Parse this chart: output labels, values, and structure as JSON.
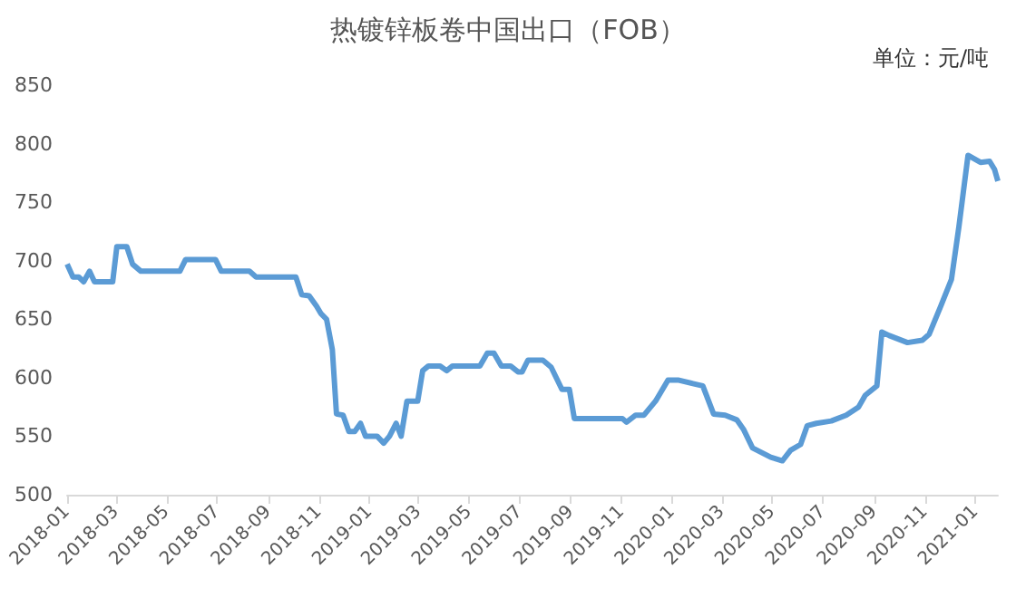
{
  "chart_data": {
    "type": "line",
    "title": "热镀锌板卷中国出口（FOB）",
    "annotations": [
      "单位：元/吨"
    ],
    "x": [
      "2018-01-01",
      "2018-01-08",
      "2018-01-15",
      "2018-01-21",
      "2018-01-28",
      "2018-02-03",
      "2018-02-25",
      "2018-03-02",
      "2018-03-14",
      "2018-03-21",
      "2018-03-31",
      "2018-05-17",
      "2018-05-24",
      "2018-06-29",
      "2018-07-06",
      "2018-08-09",
      "2018-08-17",
      "2018-10-04",
      "2018-10-11",
      "2018-10-20",
      "2018-10-29",
      "2018-11-03",
      "2018-11-10",
      "2018-11-17",
      "2018-11-22",
      "2018-11-30",
      "2018-12-07",
      "2018-12-14",
      "2018-12-21",
      "2018-12-27",
      "2019-01-10",
      "2019-01-18",
      "2019-01-25",
      "2019-02-02",
      "2019-02-08",
      "2019-02-15",
      "2019-02-28",
      "2019-03-06",
      "2019-03-13",
      "2019-03-27",
      "2019-04-04",
      "2019-04-11",
      "2019-05-14",
      "2019-05-23",
      "2019-05-31",
      "2019-06-09",
      "2019-06-20",
      "2019-06-29",
      "2019-07-04",
      "2019-07-11",
      "2019-07-29",
      "2019-08-08",
      "2019-08-21",
      "2019-08-30",
      "2019-09-05",
      "2019-11-02",
      "2019-11-07",
      "2019-11-18",
      "2019-11-28",
      "2019-12-12",
      "2019-12-27",
      "2020-01-08",
      "2020-01-26",
      "2020-02-07",
      "2020-02-20",
      "2020-03-05",
      "2020-03-19",
      "2020-03-27",
      "2020-04-07",
      "2020-04-29",
      "2020-05-13",
      "2020-05-23",
      "2020-06-04",
      "2020-06-12",
      "2020-06-23",
      "2020-07-11",
      "2020-07-29",
      "2020-08-13",
      "2020-08-21",
      "2020-09-04",
      "2020-09-10",
      "2020-09-19",
      "2020-10-11",
      "2020-10-29",
      "2020-11-06",
      "2020-11-20",
      "2020-12-03",
      "2020-12-12",
      "2020-12-23",
      "2021-01-07",
      "2021-01-18",
      "2021-01-24",
      "2021-01-28"
    ],
    "series": [
      {
        "color": "#5b9bd5",
        "values": [
          697,
          686,
          686,
          682,
          691,
          682,
          682,
          712,
          712,
          697,
          691,
          691,
          701,
          701,
          691,
          691,
          686,
          686,
          671,
          670,
          661,
          655,
          650,
          624,
          569,
          568,
          554,
          554,
          561,
          550,
          550,
          544,
          550,
          561,
          550,
          580,
          580,
          606,
          610,
          610,
          606,
          610,
          610,
          621,
          621,
          610,
          610,
          605,
          605,
          615,
          615,
          609,
          590,
          590,
          565,
          565,
          562,
          568,
          568,
          580,
          598,
          598,
          595,
          593,
          569,
          568,
          564,
          556,
          540,
          532,
          529,
          538,
          543,
          559,
          561,
          563,
          568,
          575,
          585,
          593,
          639,
          636,
          630,
          632,
          637,
          661,
          684,
          729,
          790,
          784,
          785,
          778,
          768
        ]
      }
    ],
    "xlim": [
      "2018-01-01",
      "2021-01-28"
    ],
    "xticks": [
      "2018-01",
      "2018-03",
      "2018-05",
      "2018-07",
      "2018-09",
      "2018-11",
      "2019-01",
      "2019-03",
      "2019-05",
      "2019-07",
      "2019-09",
      "2019-11",
      "2020-01",
      "2020-03",
      "2020-05",
      "2020-07",
      "2020-09",
      "2020-11",
      "2021-01"
    ],
    "ylim": [
      500,
      850
    ],
    "yticks": [
      500,
      550,
      600,
      650,
      700,
      750,
      800,
      850
    ],
    "grid": false,
    "marker": "none",
    "line_style": "solid"
  }
}
